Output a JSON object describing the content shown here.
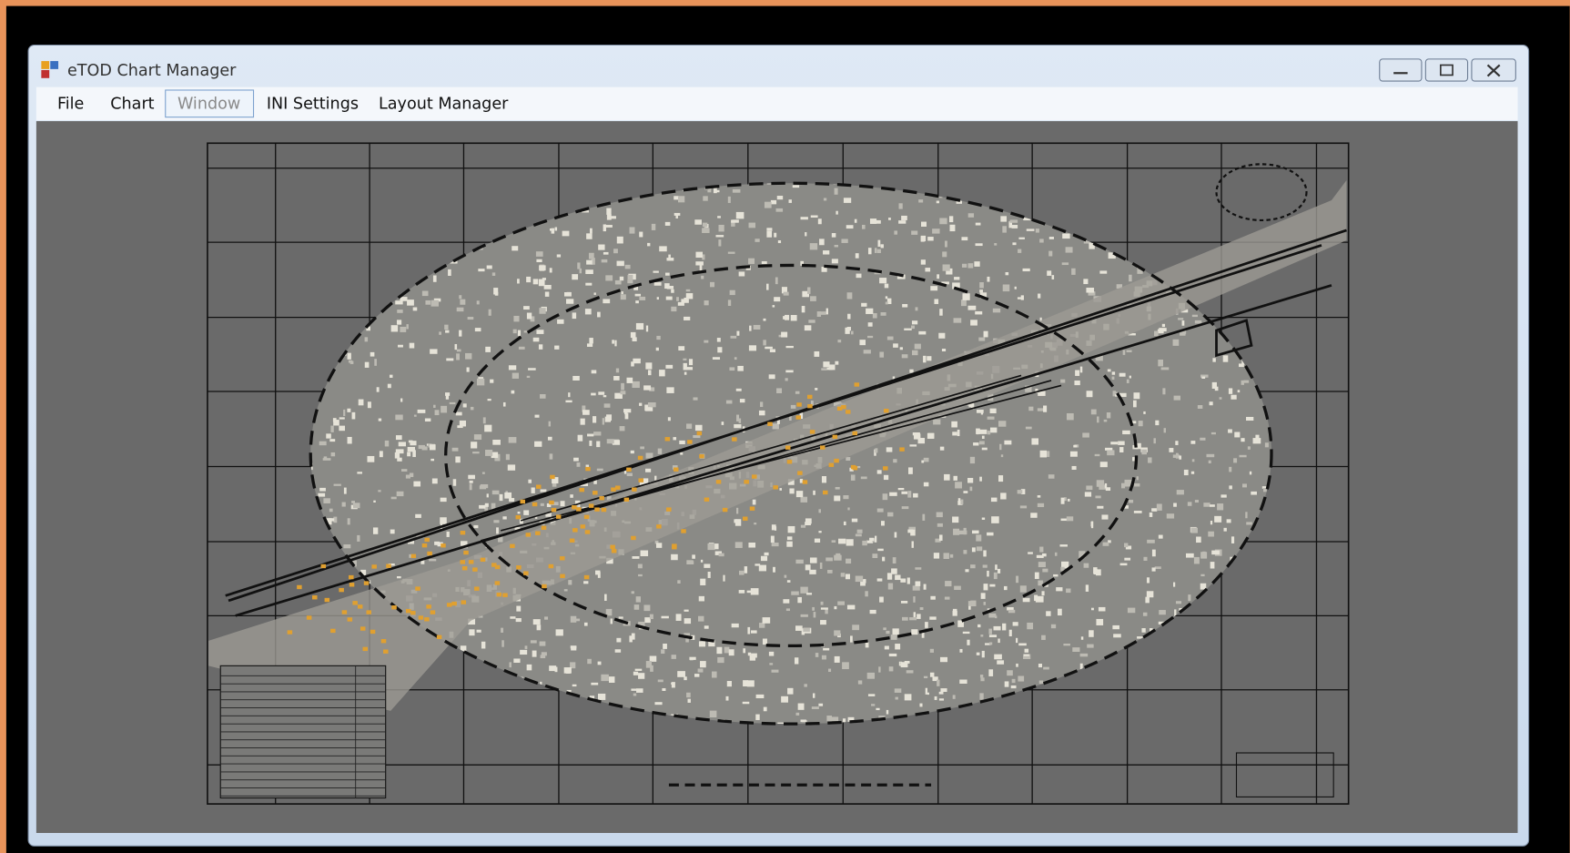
{
  "window": {
    "title": "eTOD Chart Manager"
  },
  "menu": {
    "items": [
      "File",
      "Chart",
      "Window",
      "INI Settings",
      "Layout Manager"
    ]
  }
}
